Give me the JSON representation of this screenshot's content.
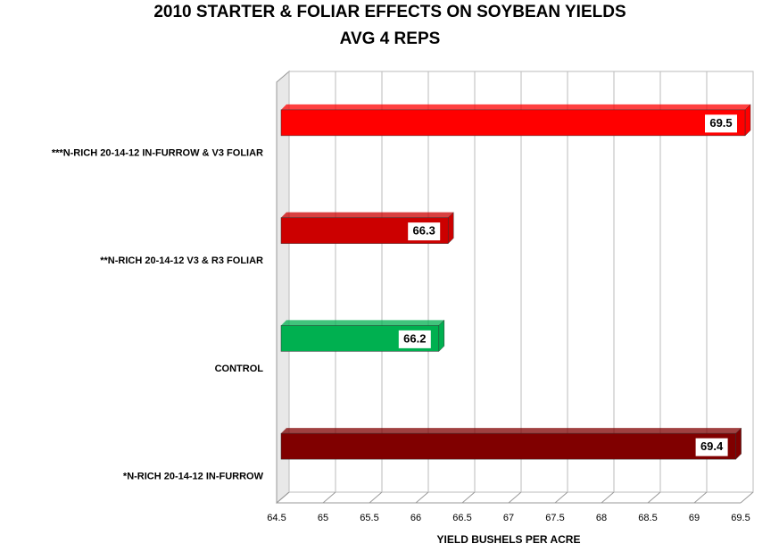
{
  "chart_data": {
    "type": "bar",
    "orientation": "horizontal",
    "title": "2010 STARTER & FOLIAR EFFECTS ON SOYBEAN YIELDS",
    "subtitle": "AVG 4 REPS",
    "x_label": "YIELD BUSHELS PER ACRE",
    "categories": [
      "***N-RICH 20-14-12 IN-FURROW & V3 FOLIAR",
      "**N-RICH 20-14-12 V3 & R3 FOLIAR",
      "CONTROL",
      "*N-RICH 20-14-12 IN-FURROW"
    ],
    "values": [
      69.5,
      66.3,
      66.2,
      69.4
    ],
    "colors": [
      "#ff0000",
      "#cc0000",
      "#00b050",
      "#800000"
    ],
    "xlim": [
      64.5,
      69.5
    ],
    "xticks": [
      64.5,
      65,
      65.5,
      66,
      66.5,
      67,
      67.5,
      68,
      68.5,
      69,
      69.5
    ],
    "grid": true
  }
}
